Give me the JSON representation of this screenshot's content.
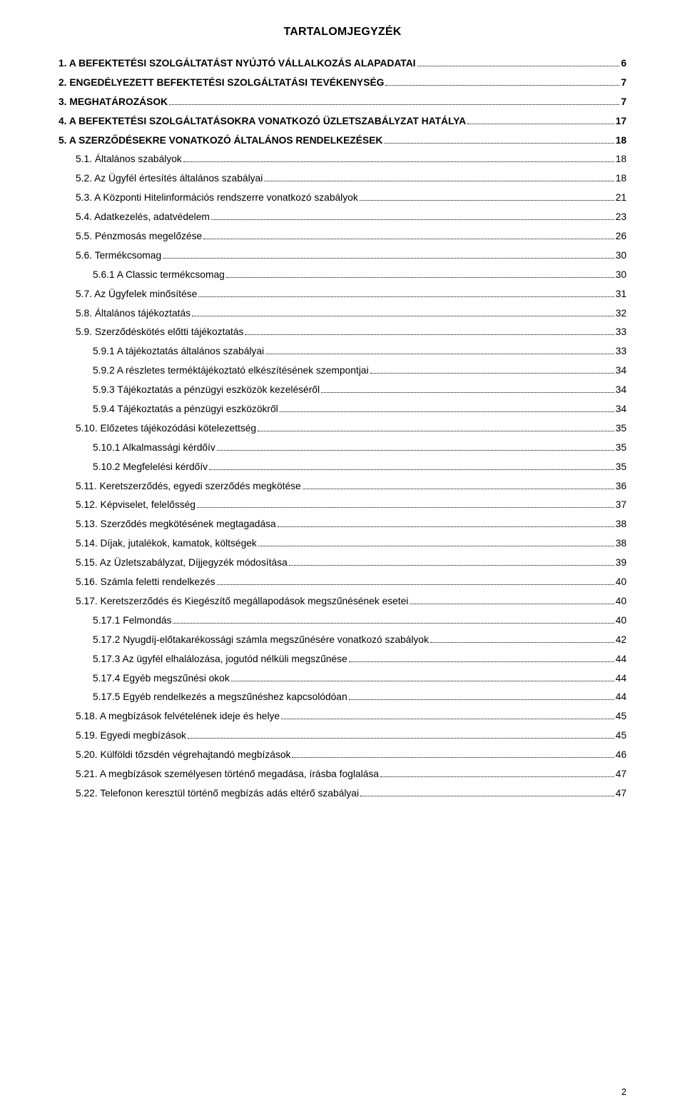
{
  "title": "TARTALOMJEGYZÉK",
  "page_number": "2",
  "colors": {
    "text": "#000000",
    "background": "#ffffff",
    "dots": "#000000"
  },
  "typography": {
    "body_fontsize_pt": 10.5,
    "title_fontsize_pt": 12,
    "line_height": 1.95
  },
  "entries": [
    {
      "level": 0,
      "bold": true,
      "smallcaps": false,
      "text": "1.   A BEFEKTETÉSI SZOLGÁLTATÁST NYÚJTÓ VÁLLALKOZÁS ALAPADATAI",
      "page": "6"
    },
    {
      "level": 0,
      "bold": true,
      "smallcaps": false,
      "text": "2.   ENGEDÉLYEZETT BEFEKTETÉSI SZOLGÁLTATÁSI TEVÉKENYSÉG",
      "page": "7"
    },
    {
      "level": 0,
      "bold": true,
      "smallcaps": false,
      "text": "3.   MEGHATÁROZÁSOK",
      "page": "7"
    },
    {
      "level": 0,
      "bold": true,
      "smallcaps": false,
      "text": "4.   A BEFEKTETÉSI SZOLGÁLTATÁSOKRA VONATKOZÓ ÜZLETSZABÁLYZAT HATÁLYA",
      "page": "17"
    },
    {
      "level": 0,
      "bold": true,
      "smallcaps": false,
      "text": "5.   A SZERZŐDÉSEKRE VONATKOZÓ ÁLTALÁNOS RENDELKEZÉSEK",
      "page": "18"
    },
    {
      "level": 1,
      "bold": false,
      "smallcaps": true,
      "text": "5.1. Általános szabályok",
      "page": "18"
    },
    {
      "level": 1,
      "bold": false,
      "smallcaps": true,
      "text": "5.2. Az Ügyfél értesítés általános szabályai",
      "page": "18"
    },
    {
      "level": 1,
      "bold": false,
      "smallcaps": true,
      "text": "5.3. A Központi Hitelinformációs rendszerre vonatkozó szabályok",
      "page": "21"
    },
    {
      "level": 1,
      "bold": false,
      "smallcaps": true,
      "text": "5.4. Adatkezelés, adatvédelem",
      "page": "23"
    },
    {
      "level": 1,
      "bold": false,
      "smallcaps": true,
      "text": "5.5. Pénzmosás megelőzése",
      "page": "26"
    },
    {
      "level": 1,
      "bold": false,
      "smallcaps": true,
      "text": "5.6. Termékcsomag",
      "page": "30"
    },
    {
      "level": 2,
      "bold": false,
      "smallcaps": true,
      "text": "5.6.1 A Classic termékcsomag",
      "page": "30"
    },
    {
      "level": 1,
      "bold": false,
      "smallcaps": true,
      "text": "5.7. Az Ügyfelek minősítése",
      "page": "31"
    },
    {
      "level": 1,
      "bold": false,
      "smallcaps": true,
      "text": "5.8. Általános tájékoztatás",
      "page": "32"
    },
    {
      "level": 1,
      "bold": false,
      "smallcaps": true,
      "text": "5.9. Szerződéskötés előtti tájékoztatás",
      "page": "33"
    },
    {
      "level": 2,
      "bold": false,
      "smallcaps": true,
      "text": "5.9.1 A tájékoztatás általános szabályai",
      "page": "33"
    },
    {
      "level": 2,
      "bold": false,
      "smallcaps": true,
      "text": "5.9.2 A részletes terméktájékoztató elkészítésének szempontjai",
      "page": "34"
    },
    {
      "level": 2,
      "bold": false,
      "smallcaps": true,
      "text": "5.9.3 Tájékoztatás a pénzügyi eszközök kezeléséről",
      "page": "34"
    },
    {
      "level": 2,
      "bold": false,
      "smallcaps": true,
      "text": "5.9.4 Tájékoztatás a pénzügyi eszközökről",
      "page": "34"
    },
    {
      "level": 1,
      "bold": false,
      "smallcaps": true,
      "text": "5.10. Előzetes tájékozódási kötelezettség",
      "page": "35"
    },
    {
      "level": 2,
      "bold": false,
      "smallcaps": true,
      "text": "5.10.1 Alkalmassági kérdőív",
      "page": "35"
    },
    {
      "level": 2,
      "bold": false,
      "smallcaps": true,
      "text": "5.10.2 Megfelelési kérdőív",
      "page": "35"
    },
    {
      "level": 1,
      "bold": false,
      "smallcaps": true,
      "text": "5.11. Keretszerződés, egyedi szerződés megkötése",
      "page": "36"
    },
    {
      "level": 1,
      "bold": false,
      "smallcaps": true,
      "text": "5.12. Képviselet, felelősség",
      "page": "37"
    },
    {
      "level": 1,
      "bold": false,
      "smallcaps": true,
      "text": "5.13. Szerződés megkötésének megtagadása",
      "page": "38"
    },
    {
      "level": 1,
      "bold": false,
      "smallcaps": true,
      "text": "5.14. Díjak, jutalékok, kamatok, költségek",
      "page": "38"
    },
    {
      "level": 1,
      "bold": false,
      "smallcaps": true,
      "text": "5.15. Az Üzletszabályzat, Díjjegyzék módosítása",
      "page": "39"
    },
    {
      "level": 1,
      "bold": false,
      "smallcaps": true,
      "text": "5.16. Számla feletti rendelkezés",
      "page": "40"
    },
    {
      "level": 1,
      "bold": false,
      "smallcaps": true,
      "text": "5.17. Keretszerződés és Kiegészítő megállapodások megszűnésének esetei",
      "page": "40"
    },
    {
      "level": 2,
      "bold": false,
      "smallcaps": true,
      "text": "5.17.1 Felmondás",
      "page": "40"
    },
    {
      "level": 2,
      "bold": false,
      "smallcaps": true,
      "text": "5.17.2 Nyugdíj-előtakarékossági számla megszűnésére vonatkozó szabályok",
      "page": "42"
    },
    {
      "level": 2,
      "bold": false,
      "smallcaps": true,
      "text": "5.17.3 Az ügyfél elhalálozása, jogutód nélküli megszűnése",
      "page": "44"
    },
    {
      "level": 2,
      "bold": false,
      "smallcaps": true,
      "text": "5.17.4 Egyéb megszűnési okok",
      "page": "44"
    },
    {
      "level": 2,
      "bold": false,
      "smallcaps": true,
      "text": "5.17.5 Egyéb rendelkezés a megszűnéshez kapcsolódóan",
      "page": "44"
    },
    {
      "level": 1,
      "bold": false,
      "smallcaps": true,
      "text": "5.18. A megbízások felvételének ideje és helye",
      "page": "45"
    },
    {
      "level": 1,
      "bold": false,
      "smallcaps": true,
      "text": "5.19. Egyedi megbízások",
      "page": "45"
    },
    {
      "level": 1,
      "bold": false,
      "smallcaps": true,
      "text": "5.20. Külföldi tőzsdén végrehajtandó megbízások",
      "page": "46"
    },
    {
      "level": 1,
      "bold": false,
      "smallcaps": true,
      "text": "5.21. A megbízások személyesen történő megadása, írásba foglalása",
      "page": "47"
    },
    {
      "level": 1,
      "bold": false,
      "smallcaps": true,
      "text": "5.22. Telefonon keresztül történő megbízás adás eltérő szabályai",
      "page": "47"
    }
  ]
}
